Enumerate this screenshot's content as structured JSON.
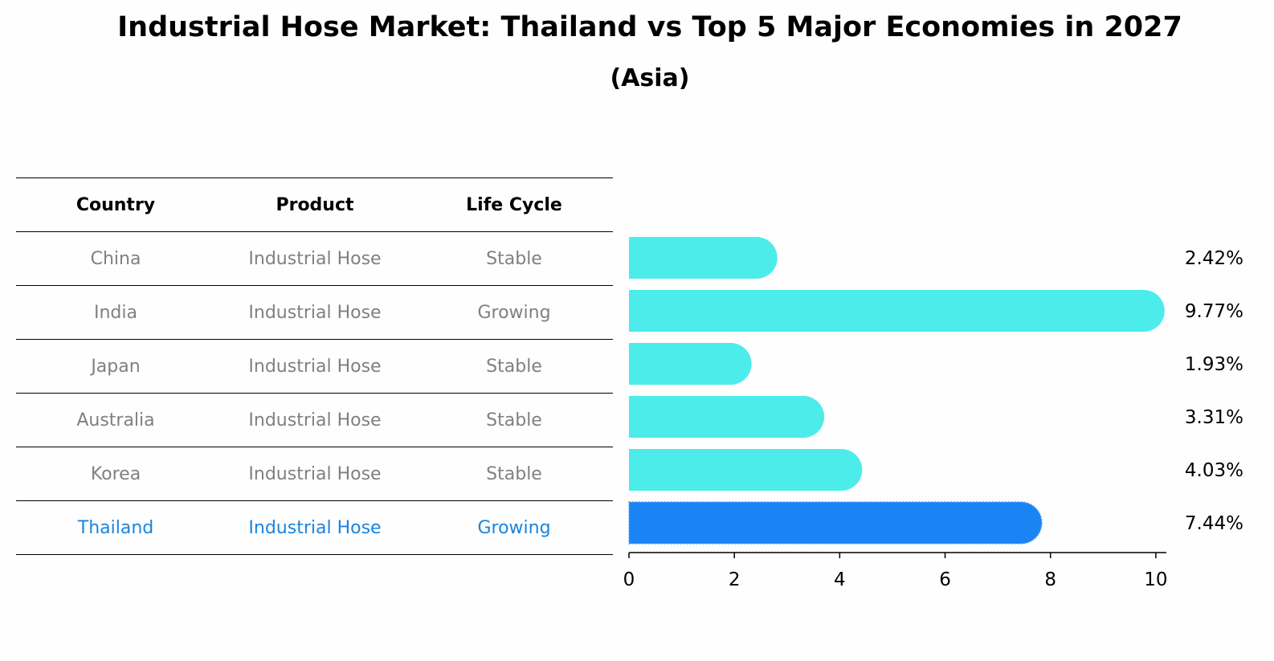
{
  "title": "Industrial Hose Market: Thailand vs Top 5 Major Economies in 2027",
  "subtitle": "(Asia)",
  "table": {
    "headers": [
      "Country",
      "Product",
      "Life Cycle"
    ],
    "rows": [
      {
        "country": "China",
        "product": "Industrial Hose",
        "life_cycle": "Stable"
      },
      {
        "country": "India",
        "product": "Industrial Hose",
        "life_cycle": "Growing"
      },
      {
        "country": "Japan",
        "product": "Industrial Hose",
        "life_cycle": "Stable"
      },
      {
        "country": "Australia",
        "product": "Industrial Hose",
        "life_cycle": "Stable"
      },
      {
        "country": "Korea",
        "product": "Industrial Hose",
        "life_cycle": "Stable"
      },
      {
        "country": "Thailand",
        "product": "Industrial Hose",
        "life_cycle": "Growing"
      }
    ]
  },
  "colors": {
    "bar": "#4cecea",
    "highlight": "#1a84f4",
    "highlight_text": "#1a84df",
    "muted_text": "#808080"
  },
  "chart_data": {
    "type": "bar",
    "orientation": "horizontal",
    "categories": [
      "China",
      "India",
      "Japan",
      "Australia",
      "Korea",
      "Thailand"
    ],
    "values": [
      2.42,
      9.77,
      1.93,
      3.31,
      4.03,
      7.44
    ],
    "value_labels": [
      "2.42%",
      "9.77%",
      "1.93%",
      "3.31%",
      "4.03%",
      "7.44%"
    ],
    "highlight": "Thailand",
    "xlim": [
      0,
      10.2
    ],
    "xticks": [
      0,
      2,
      4,
      6,
      8,
      10
    ],
    "grid": false
  }
}
